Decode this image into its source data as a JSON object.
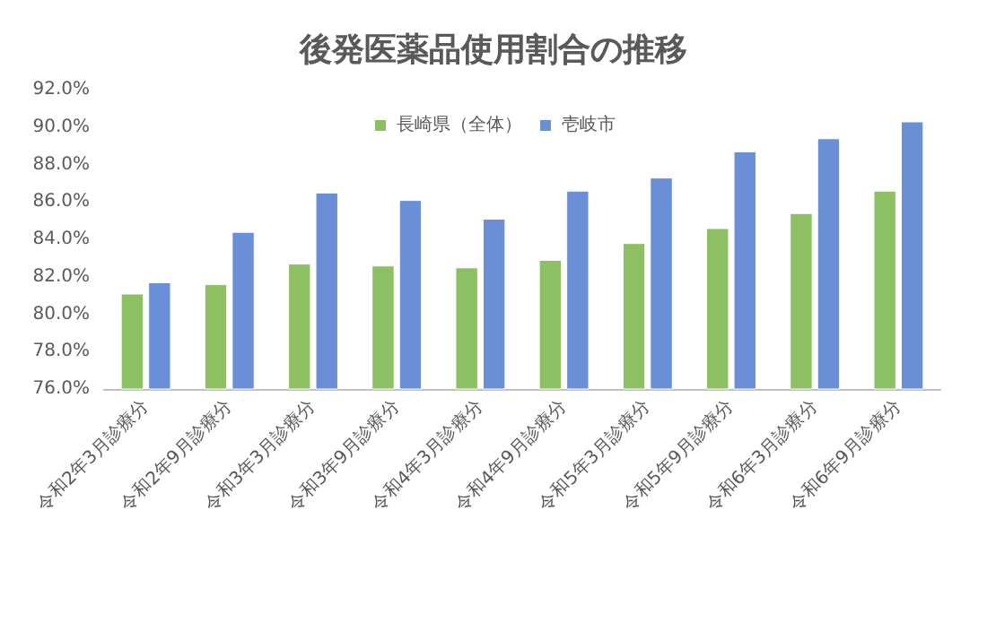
{
  "chart_data": {
    "type": "bar",
    "title": "後発医薬品使用割合の推移",
    "categories": [
      "令和2年3月診療分",
      "令和2年9月診療分",
      "令和3年3月診療分",
      "令和3年9月診療分",
      "令和4年3月診療分",
      "令和4年9月診療分",
      "令和5年3月診療分",
      "令和5年9月診療分",
      "令和6年3月診療分",
      "令和6年9月診療分"
    ],
    "series": [
      {
        "name": "長崎県（全体）",
        "color": "#8dc063",
        "values": [
          81.1,
          81.6,
          82.7,
          82.6,
          82.5,
          82.9,
          83.8,
          84.6,
          85.4,
          86.6
        ]
      },
      {
        "name": "壱岐市",
        "color": "#6b8fd6",
        "values": [
          81.7,
          84.4,
          86.5,
          86.1,
          85.1,
          86.6,
          87.3,
          88.7,
          89.4,
          90.3
        ]
      }
    ],
    "ylim": [
      76,
      92
    ],
    "yticks": [
      {
        "value": 76,
        "label": "76.0%"
      },
      {
        "value": 78,
        "label": "78.0%"
      },
      {
        "value": 80,
        "label": "80.0%"
      },
      {
        "value": 82,
        "label": "82.0%"
      },
      {
        "value": 84,
        "label": "84.0%"
      },
      {
        "value": 86,
        "label": "86.0%"
      },
      {
        "value": 88,
        "label": "88.0%"
      },
      {
        "value": 90,
        "label": "90.0%"
      },
      {
        "value": 92,
        "label": "92.0%"
      }
    ],
    "grid": false,
    "legend": "top"
  }
}
